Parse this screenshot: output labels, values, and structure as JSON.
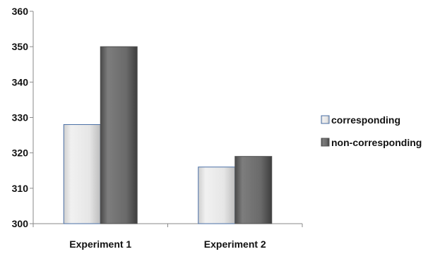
{
  "chart_data": {
    "type": "bar",
    "categories": [
      "Experiment 1",
      "Experiment 2"
    ],
    "series": [
      {
        "name": "corresponding",
        "values": [
          328,
          316
        ],
        "color": "#e4e4e4"
      },
      {
        "name": "non-corresponding",
        "values": [
          350,
          319
        ],
        "color": "#6f6f6f"
      }
    ],
    "ylim": [
      300,
      360
    ],
    "yticks": [
      300,
      310,
      320,
      330,
      340,
      350,
      360
    ],
    "legend_position": "right",
    "grid": false,
    "title": "",
    "xlabel": "",
    "ylabel": ""
  }
}
